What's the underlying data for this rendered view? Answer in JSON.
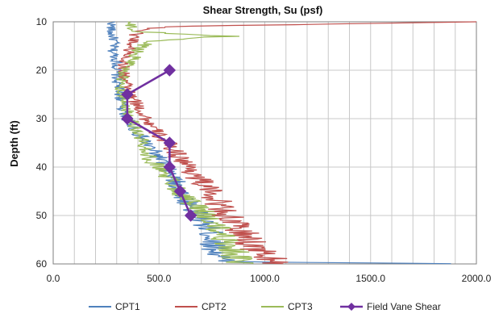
{
  "chart_data": {
    "type": "line",
    "title": "Shear Strength, Su (psf)",
    "xlabel": "",
    "ylabel": "Depth (ft)",
    "xlim": [
      0,
      2000
    ],
    "ylim": [
      10,
      60
    ],
    "y_reversed": true,
    "x_axis_position": "top",
    "x_tick_values": [
      0,
      500,
      1000,
      1500,
      2000
    ],
    "x_tick_labels": [
      "0.0",
      "500.0",
      "1000.0",
      "1500.0",
      "2000.0"
    ],
    "x_minor_gridline_step": 100,
    "y_tick_values": [
      10,
      20,
      30,
      40,
      50,
      60
    ],
    "y_tick_labels": [
      "10",
      "20",
      "30",
      "40",
      "50",
      "60"
    ],
    "grid": true,
    "legend_placement": "bottom",
    "series": [
      {
        "name": "CPT1",
        "color": "#4f81bd",
        "style": "noisy-line",
        "depth": [
          10,
          12,
          14,
          16,
          18,
          20,
          22,
          24,
          26,
          28,
          30,
          32,
          34,
          36,
          38,
          40,
          42,
          44,
          46,
          48,
          50,
          52,
          54,
          56,
          58,
          59.5,
          60
        ],
        "su": [
          280,
          270,
          290,
          280,
          300,
          300,
          300,
          310,
          320,
          330,
          350,
          380,
          420,
          460,
          500,
          530,
          560,
          590,
          620,
          650,
          680,
          720,
          750,
          760,
          780,
          800,
          2000
        ]
      },
      {
        "name": "CPT2",
        "color": "#c0504d",
        "style": "noisy-line",
        "depth": [
          10,
          10.4,
          11,
          12,
          14,
          16,
          18,
          20,
          22,
          24,
          26,
          28,
          30,
          32,
          34,
          36,
          38,
          40,
          42,
          44,
          46,
          48,
          50,
          52,
          54,
          56,
          58,
          59.5,
          60
        ],
        "su": [
          2000,
          1400,
          520,
          400,
          380,
          360,
          340,
          330,
          340,
          350,
          380,
          410,
          440,
          470,
          510,
          560,
          600,
          640,
          680,
          720,
          760,
          790,
          820,
          860,
          900,
          940,
          990,
          1050,
          1100
        ]
      },
      {
        "name": "CPT3",
        "color": "#9bbb59",
        "style": "noisy-line",
        "depth": [
          10,
          12,
          13,
          14,
          16,
          18,
          20,
          22,
          24,
          26,
          28,
          30,
          32,
          34,
          36,
          38,
          40,
          42,
          44,
          46,
          48,
          50,
          52,
          54,
          56,
          58,
          60
        ],
        "su": [
          350,
          380,
          820,
          450,
          400,
          380,
          340,
          320,
          320,
          330,
          350,
          370,
          390,
          410,
          440,
          450,
          500,
          540,
          580,
          620,
          670,
          720,
          760,
          800,
          830,
          860,
          880
        ]
      },
      {
        "name": "Field Vane Shear",
        "color": "#7030a0",
        "style": "line-markers",
        "depth": [
          20,
          25,
          30,
          35,
          40,
          45,
          50
        ],
        "su": [
          550,
          350,
          350,
          550,
          550,
          600,
          650
        ]
      }
    ]
  }
}
